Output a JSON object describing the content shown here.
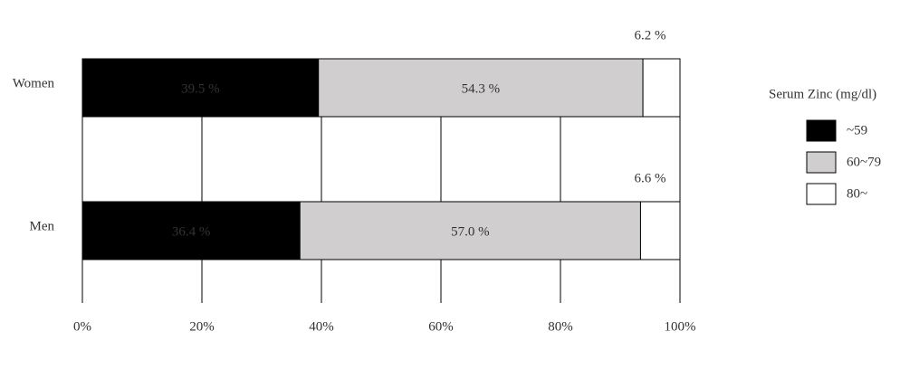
{
  "chart_data": {
    "type": "stacked-bar-horizontal",
    "categories": [
      "Women",
      "Men"
    ],
    "series": [
      {
        "name": "~59",
        "color": "#000000",
        "values": [
          39.5,
          36.4
        ],
        "value_labels": [
          "39.5 %",
          "36.4 %"
        ]
      },
      {
        "name": "60~79",
        "color": "#d0cece",
        "values": [
          54.3,
          57.0
        ],
        "value_labels": [
          "54.3 %",
          "57.0 %"
        ]
      },
      {
        "name": "80~",
        "color": "#ffffff",
        "values": [
          6.2,
          6.6
        ],
        "value_labels": [
          "6.2 %",
          "6.6 %"
        ]
      }
    ],
    "xlim": [
      0,
      100
    ],
    "xticks": [
      {
        "value": 0,
        "label": "0%"
      },
      {
        "value": 20,
        "label": "20%"
      },
      {
        "value": 40,
        "label": "40%"
      },
      {
        "value": 60,
        "label": "60%"
      },
      {
        "value": 80,
        "label": "80%"
      },
      {
        "value": 100,
        "label": "100%"
      }
    ],
    "grid": true,
    "legend_title": "Serum Zinc (mg/dl)",
    "legend_position": "right"
  }
}
